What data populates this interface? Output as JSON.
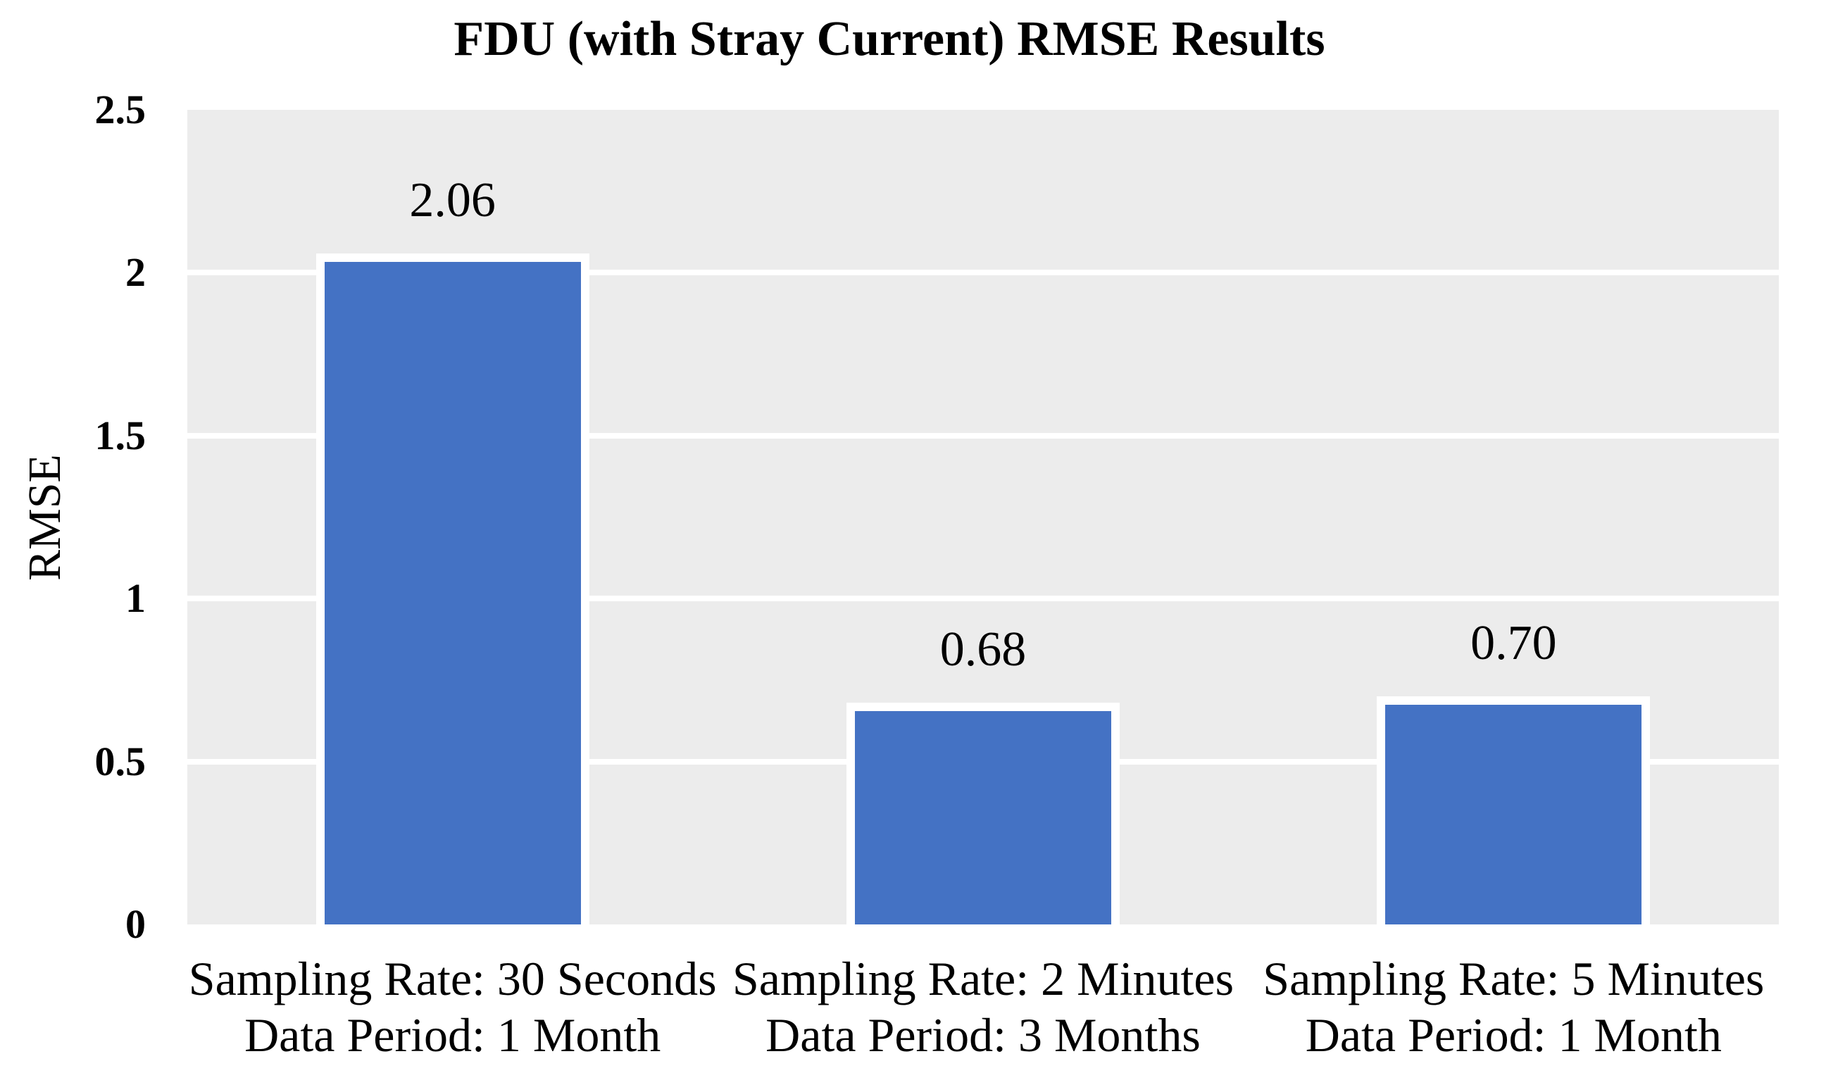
{
  "chart_data": {
    "type": "bar",
    "title": "FDU (with Stray Current) RMSE Results",
    "ylabel": "RMSE",
    "xlabel": "",
    "categories": [
      [
        "Sampling Rate: 30 Seconds",
        "Data Period: 1 Month"
      ],
      [
        "Sampling Rate: 2 Minutes",
        "Data Period: 3 Months"
      ],
      [
        "Sampling Rate: 5 Minutes",
        "Data Period: 1 Month"
      ]
    ],
    "values": [
      2.06,
      0.68,
      0.7
    ],
    "data_labels": [
      "2.06",
      "0.68",
      "0.70"
    ],
    "y_ticks": [
      "2.5",
      "2",
      "1.5",
      "1",
      "0.5",
      "0"
    ],
    "ylim": [
      0,
      2.5
    ],
    "grid": true,
    "legend_position": "none",
    "bar_color": "#4472C4",
    "bar_border_color": "#FFFFFF",
    "plot_background": "#ECECEC",
    "gridline_color": "#FFFFFF"
  }
}
